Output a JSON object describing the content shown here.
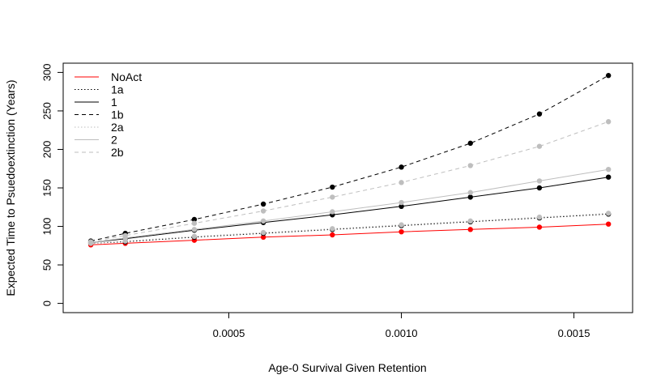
{
  "chart_data": {
    "type": "line",
    "title": "",
    "xlabel": "Age-0 Survival Given Retention",
    "ylabel": "Expected Time to Psuedoextinction (Years)",
    "xlim": [
      2e-05,
      0.00167
    ],
    "ylim": [
      -12,
      312
    ],
    "xticks": [
      0.0005,
      0.001,
      0.0015
    ],
    "xtick_labels": [
      "0.0005",
      "0.0010",
      "0.0015"
    ],
    "yticks": [
      0,
      50,
      100,
      150,
      200,
      250,
      300
    ],
    "ytick_labels": [
      "0",
      "50",
      "100",
      "150",
      "200",
      "250",
      "300"
    ],
    "grid": false,
    "legend_position": "top-left",
    "x": [
      0.0001,
      0.0002,
      0.0004,
      0.0006,
      0.0008,
      0.001,
      0.0012,
      0.0014,
      0.0016
    ],
    "series": [
      {
        "name": "NoAct",
        "color": "#ff0000",
        "dash": "solid",
        "values": [
          76,
          78,
          82,
          86,
          89,
          93,
          96,
          99,
          103
        ]
      },
      {
        "name": "1a",
        "color": "#000000",
        "dash": "dotted",
        "values": [
          78,
          80,
          86,
          91,
          96,
          101,
          106,
          111,
          116
        ]
      },
      {
        "name": "1",
        "color": "#000000",
        "dash": "solid",
        "values": [
          79,
          84,
          95,
          105,
          115,
          126,
          138,
          150,
          164
        ]
      },
      {
        "name": "1b",
        "color": "#000000",
        "dash": "dashed",
        "values": [
          81,
          91,
          109,
          129,
          151,
          177,
          208,
          246,
          296
        ]
      },
      {
        "name": "2a",
        "color": "#bebebe",
        "dash": "dotted",
        "values": [
          78,
          81,
          87,
          92,
          97,
          102,
          107,
          112,
          117
        ]
      },
      {
        "name": "2",
        "color": "#bebebe",
        "dash": "solid",
        "values": [
          79,
          85,
          96,
          107,
          119,
          131,
          144,
          159,
          174
        ]
      },
      {
        "name": "2b",
        "color": "#bebebe",
        "dash": "dashed",
        "values": [
          80,
          88,
          104,
          120,
          138,
          157,
          179,
          204,
          236
        ]
      }
    ]
  }
}
